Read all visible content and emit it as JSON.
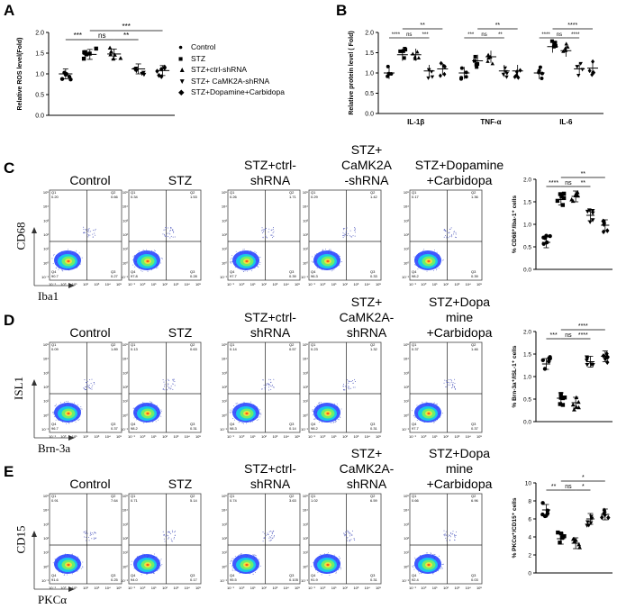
{
  "panels": {
    "A": {
      "label": "A",
      "chart_data": {
        "type": "scatter",
        "ylabel": "Relative ROS level(Fold)",
        "ylim": [
          0,
          2.0
        ],
        "yticks": [
          "0.0",
          "0.5",
          "1.0",
          "1.5",
          "2.0"
        ],
        "groups": [
          "Control",
          "STZ",
          "STZ+ctrl-shRNA",
          "STZ+ CaMK2A-shRNA",
          "STZ+Dopamine+Carbidopa"
        ],
        "means": [
          1.0,
          1.47,
          1.48,
          1.12,
          1.08
        ],
        "sig": [
          {
            "label": "***",
            "from": 0,
            "to": 1
          },
          {
            "label": "ns",
            "from": 1,
            "to": 2
          },
          {
            "label": "**",
            "from": 2,
            "to": 3
          },
          {
            "label": "***",
            "from": 1,
            "to": 4
          }
        ]
      },
      "legend": [
        {
          "marker": "●",
          "text": "Control"
        },
        {
          "marker": "■",
          "text": "STZ"
        },
        {
          "marker": "▲",
          "text": "STZ+ctrl-shRNA"
        },
        {
          "marker": "▼",
          "text": "STZ+ CaMK2A-shRNA"
        },
        {
          "marker": "◆",
          "text": "STZ+Dopamine+Carbidopa"
        }
      ]
    },
    "B": {
      "label": "B",
      "chart_data": {
        "type": "scatter",
        "ylabel": "Relative protein level ( Fold)",
        "ylim": [
          0,
          2.0
        ],
        "yticks": [
          "0.0",
          "0.5",
          "1.0",
          "1.5",
          "2.0"
        ],
        "categories": [
          "IL-1β",
          "TNF-α",
          "IL-6"
        ],
        "series": [
          {
            "name": "Control",
            "values": [
              1.0,
              1.0,
              1.0
            ]
          },
          {
            "name": "STZ",
            "values": [
              1.45,
              1.3,
              1.65
            ]
          },
          {
            "name": "STZ+ctrl-shRNA",
            "values": [
              1.45,
              1.4,
              1.55
            ]
          },
          {
            "name": "STZ+ CaMK2A-shRNA",
            "values": [
              1.05,
              1.05,
              1.1
            ]
          },
          {
            "name": "STZ+Dopamine+Carbidopa",
            "values": [
              1.1,
              1.05,
              1.12
            ]
          }
        ],
        "sig": [
          [
            "****",
            "ns",
            "***",
            "**"
          ],
          [
            "***",
            "ns",
            "**",
            "**"
          ],
          [
            "****",
            "ns",
            "****",
            "****"
          ]
        ]
      }
    },
    "rows": [
      {
        "label": "C",
        "titles": [
          "Control",
          "STZ",
          "STZ+ctrl-\nshRNA",
          "STZ+\nCaMK2A\n-shRNA",
          "STZ+Dopamine\n+Carbidopa"
        ],
        "ylab": "CD68",
        "xlab": "Iba1",
        "quadrants": [
          [
            "Q1\n0.20",
            "Q2\n0.66",
            "Q4\n90.7",
            "Q3\n0.27"
          ],
          [
            "Q1\n0.34",
            "Q2\n1.53",
            "Q4\n97.8",
            "Q3\n0.28"
          ],
          [
            "Q1\n0.26",
            "Q2\n1.71",
            "Q4\n97.7",
            "Q3\n0.39"
          ],
          [
            "Q1\n0.29",
            "Q2\n1.42",
            "Q4\n96.3",
            "Q3\n0.33"
          ],
          [
            "Q1\n0.17",
            "Q2\n1.36",
            "Q4\n98.2",
            "Q3\n0.39"
          ]
        ],
        "yticks": [
          "10⁵",
          "10⁴",
          "10³",
          "10²",
          "10¹",
          "10⁰",
          "10⁻¹"
        ],
        "xticks": [
          "10⁻¹",
          "10⁰",
          "10¹",
          "10²",
          "10³",
          "10⁴",
          "10⁵"
        ],
        "chart_data": {
          "type": "scatter",
          "ylabel": "% CD68⁺/Iba-1⁺ cells",
          "ylim": [
            0,
            2.0
          ],
          "yticks": [
            "0.0",
            "0.5",
            "1.0",
            "1.5",
            "2.0"
          ],
          "means": [
            0.6,
            1.55,
            1.62,
            1.2,
            0.98
          ],
          "sig": [
            {
              "label": "****",
              "from": 0,
              "to": 1
            },
            {
              "label": "ns",
              "from": 1,
              "to": 2
            },
            {
              "label": "**",
              "from": 2,
              "to": 3
            },
            {
              "label": "**",
              "from": 1,
              "to": 4
            }
          ]
        }
      },
      {
        "label": "D",
        "titles": [
          "Control",
          "STZ",
          "STZ+ctrl-\nshRNA",
          "STZ+\nCaMK2A-\nshRNA",
          "STZ+Dopa\nmine\n+Carbidopa"
        ],
        "ylab": "ISL1",
        "xlab": "Brn-3a",
        "quadrants": [
          [
            "Q1\n0.09",
            "Q2\n1.89",
            "Q4\n96.7",
            "Q3\n0.37"
          ],
          [
            "Q1\n0.13",
            "Q2\n0.63",
            "Q4\n98.2",
            "Q3\n0.31"
          ],
          [
            "Q1\n0.14",
            "Q2\n0.57",
            "Q4\n98.3",
            "Q3\n0.14"
          ],
          [
            "Q1\n0.23",
            "Q2\n1.32",
            "Q4\n98.2",
            "Q3\n0.31"
          ],
          [
            "Q1\n0.37",
            "Q2\n1.46",
            "Q4\n97.7",
            "Q3\n0.37"
          ]
        ],
        "yticks": [
          "10⁵",
          "10⁴",
          "10³",
          "10²",
          "10¹",
          "10⁰",
          "10⁻¹"
        ],
        "xticks": [
          "10⁻¹",
          "10⁰",
          "10¹",
          "10²",
          "10³",
          "10⁴",
          "10⁵"
        ],
        "chart_data": {
          "type": "scatter",
          "ylabel": "% Brn-3a⁺/ISL-1⁺ cells",
          "ylim": [
            0,
            2.0
          ],
          "yticks": [
            "0.0",
            "0.5",
            "1.0",
            "1.5",
            "2.0"
          ],
          "means": [
            1.28,
            0.52,
            0.42,
            1.33,
            1.45
          ],
          "sig": [
            {
              "label": "***",
              "from": 0,
              "to": 1
            },
            {
              "label": "****",
              "from": 2,
              "to": 3
            },
            {
              "label": "ns",
              "from": 1,
              "to": 2
            },
            {
              "label": "****",
              "from": 1,
              "to": 4
            }
          ]
        }
      },
      {
        "label": "E",
        "titles": [
          "Control",
          "STZ",
          "STZ+ctrl-\nshRNA",
          "STZ+\nCaMK2A-\nshRNA",
          "STZ+Dopa\nmine\n+Carbidopa"
        ],
        "ylab": "CD15",
        "xlab": "PKCα",
        "quadrants": [
          [
            "Q1\n0.91",
            "Q2\n7.64",
            "Q4\n91.6",
            "Q3\n0.25"
          ],
          [
            "Q1\n0.71",
            "Q2\n5.14",
            "Q4\n94.0",
            "Q3\n0.17"
          ],
          [
            "Q1\n0.74",
            "Q2\n3.63",
            "Q4\n95.5",
            "Q3\n0.105"
          ],
          [
            "Q1\n1.02",
            "Q2\n6.59",
            "Q4\n91.9",
            "Q3\n0.31"
          ],
          [
            "Q1\n0.66",
            "Q2\n6.96",
            "Q4\n92.4",
            "Q3\n0.03"
          ]
        ],
        "yticks": [
          "10⁵",
          "10⁴",
          "10³",
          "10²",
          "10¹",
          "10⁰",
          "10⁻¹"
        ],
        "xticks": [
          "10⁻¹",
          "10⁰",
          "10¹",
          "10²",
          "10³",
          "10⁴",
          "10⁵"
        ],
        "chart_data": {
          "type": "scatter",
          "ylabel": "% PKCα⁺/CD15⁺ cells",
          "ylim": [
            0,
            10
          ],
          "yticks": [
            "0",
            "2",
            "4",
            "6",
            "8",
            "10"
          ],
          "means": [
            7.0,
            3.8,
            3.3,
            6.0,
            6.5
          ],
          "sig": [
            {
              "label": "**",
              "from": 0,
              "to": 1
            },
            {
              "label": "ns",
              "from": 1,
              "to": 2
            },
            {
              "label": "*",
              "from": 2,
              "to": 3
            },
            {
              "label": "*",
              "from": 1,
              "to": 4
            }
          ]
        }
      }
    ]
  },
  "colors": {
    "density_outer": "#1f3cff",
    "density_mid": "#18c8e8",
    "density_inner": "#6df06a",
    "density_core": "#f0e040",
    "density_hot": "#ff5a1a"
  }
}
